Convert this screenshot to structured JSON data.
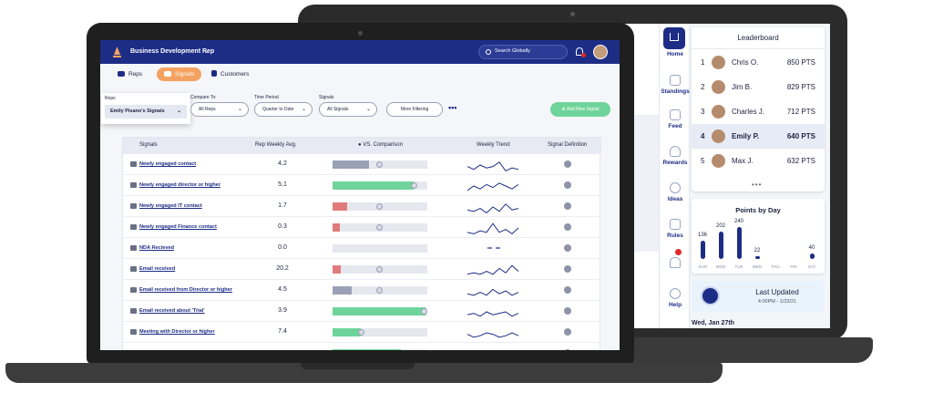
{
  "colors": {
    "navy": "#1d2d86",
    "orange": "#f4a261",
    "green": "#6fd49a",
    "red": "#e07b7b",
    "gray": "#9aa0b6"
  },
  "front": {
    "header": {
      "title": "Business Development Rep",
      "search_placeholder": "Search Globally"
    },
    "tabs": [
      {
        "label": "Reps"
      },
      {
        "label": "Signals"
      },
      {
        "label": "Customers"
      }
    ],
    "filters": {
      "reps_label": "Reps",
      "reps_value": "Emily Pisano's Signals",
      "compare_label": "Compare To:",
      "compare_value": "All Reps",
      "period_label": "Time Period",
      "period_value": "Quarter to Date",
      "signals_label": "Signals",
      "signals_value": "All Signals",
      "more_label": "More Filtering",
      "more_dots": "•••",
      "add_label": "Add New Signal"
    },
    "table": {
      "headers": {
        "signals": "Signals",
        "avg": "Rep Weekly Avg.",
        "comparison": "VS. Comparison",
        "trend": "Weekly Trend",
        "definition": "Signal Definition"
      },
      "rows": [
        {
          "name": "Newly engaged contact",
          "avg": "4.2",
          "fill": 0.38,
          "status": "gray",
          "trend": [
            6,
            8,
            5,
            7,
            6,
            3,
            9,
            7,
            8
          ],
          "icon": "person-icon"
        },
        {
          "name": "Newly engaged director or higher",
          "avg": "5.1",
          "fill": 0.86,
          "status": "green",
          "trend": [
            8,
            5,
            7,
            4,
            6,
            3,
            5,
            7,
            4
          ],
          "icon": "person-icon"
        },
        {
          "name": "Newly engaged IT contact",
          "avg": "1.7",
          "fill": 0.15,
          "status": "red",
          "trend": [
            7,
            8,
            6,
            9,
            5,
            8,
            3,
            7,
            6
          ],
          "icon": "person-icon"
        },
        {
          "name": "Newly engaged Finance contact",
          "avg": "0.3",
          "fill": 0.08,
          "status": "red",
          "trend": [
            8,
            9,
            7,
            8,
            2,
            8,
            6,
            9,
            5
          ],
          "icon": "person-icon"
        },
        {
          "name": "NDA Recieved",
          "avg": "0.0",
          "fill": 0,
          "status": "none",
          "trend": [],
          "icon": "document-icon"
        },
        {
          "name": "Email received",
          "avg": "20.2",
          "fill": 0.09,
          "status": "red",
          "trend": [
            8,
            7,
            8,
            6,
            8,
            4,
            7,
            2,
            6
          ],
          "icon": "mail-icon"
        },
        {
          "name": "Email received from Director or higher",
          "avg": "4.5",
          "fill": 0.2,
          "status": "gray",
          "trend": [
            7,
            8,
            6,
            8,
            4,
            7,
            5,
            8,
            6
          ],
          "icon": "mail-icon"
        },
        {
          "name": "Email received about 'Trial'",
          "avg": "3.9",
          "fill": 0.98,
          "status": "green",
          "trend": [
            7,
            6,
            8,
            5,
            7,
            6,
            5,
            8,
            6
          ],
          "icon": "mail-icon"
        },
        {
          "name": "Meeting with Director or higher",
          "avg": "7.4",
          "fill": 0.3,
          "status": "green",
          "trend": [
            6,
            8,
            7,
            5,
            6,
            8,
            7,
            5,
            7
          ],
          "icon": "calendar-icon"
        },
        {
          "name": "",
          "avg": "",
          "fill": 0.72,
          "status": "green",
          "trend": [
            8,
            6,
            8,
            7,
            5,
            8,
            6,
            7,
            6
          ],
          "icon": "calendar-icon"
        }
      ]
    }
  },
  "back": {
    "nav": [
      {
        "label": "Home"
      },
      {
        "label": "Standings"
      },
      {
        "label": "Feed"
      },
      {
        "label": "Rewards"
      },
      {
        "label": "Ideas"
      },
      {
        "label": "Rules"
      },
      {
        "label": "Help"
      }
    ],
    "leaderboard": {
      "title": "Leaderboard",
      "rows": [
        {
          "rank": "1",
          "name": "Chris O.",
          "pts": "850 PTS"
        },
        {
          "rank": "2",
          "name": "Jim B.",
          "pts": "829 PTS"
        },
        {
          "rank": "3",
          "name": "Charles J.",
          "pts": "712 PTS"
        },
        {
          "rank": "4",
          "name": "Emily P.",
          "pts": "640 PTS",
          "highlight": true
        },
        {
          "rank": "5",
          "name": "Max J.",
          "pts": "632 PTS"
        }
      ],
      "more": "•••"
    },
    "points": {
      "title": "Points by Day",
      "days": [
        {
          "day": "SUN",
          "value": 136,
          "label": "136"
        },
        {
          "day": "MON",
          "value": 202,
          "label": "202"
        },
        {
          "day": "TUE",
          "value": 240,
          "label": "240"
        },
        {
          "day": "WED",
          "value": 22,
          "label": "22"
        },
        {
          "day": "THU",
          "value": 0,
          "label": ""
        },
        {
          "day": "FRI",
          "value": 0,
          "label": ""
        },
        {
          "day": "SAT",
          "value": 40,
          "label": "40"
        }
      ],
      "max": 260
    },
    "updated": {
      "title": "Last Updated",
      "time": "4:00PM - 1/23/21"
    },
    "date": "Wed, Jan 27th"
  }
}
